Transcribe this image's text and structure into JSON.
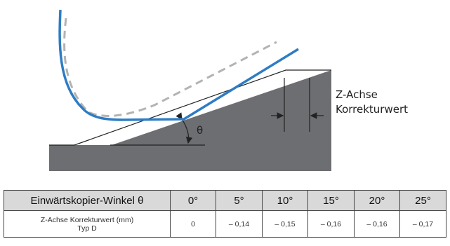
{
  "diagram": {
    "axis_label_line1": "Z-Achse",
    "axis_label_line2": "Korrekturwert",
    "angle_symbol": "θ",
    "colors": {
      "tool_path": "#2e7cc4",
      "reference_path": "#b3b3b3",
      "workpiece": "#6d6e71",
      "outline": "#222222"
    }
  },
  "table": {
    "header_label": "Einwärtskopier-Winkel θ",
    "angles": [
      "0°",
      "5°",
      "10°",
      "15°",
      "20°",
      "25°"
    ],
    "row_label_line1": "Z-Achse Korrekturwert (mm)",
    "row_label_line2": "Typ D",
    "values": [
      "0",
      "– 0,14",
      "– 0,15",
      "– 0,16",
      "– 0,16",
      "– 0,17"
    ]
  }
}
